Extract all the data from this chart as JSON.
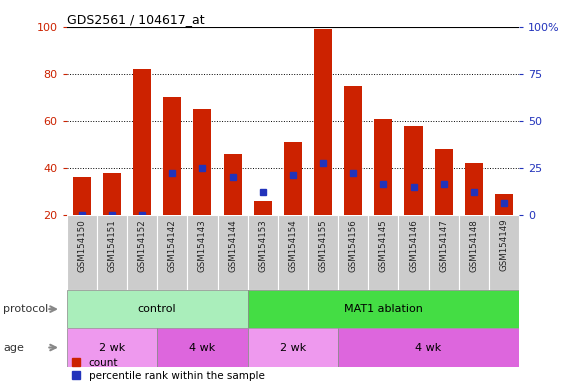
{
  "title": "GDS2561 / 104617_at",
  "samples": [
    "GSM154150",
    "GSM154151",
    "GSM154152",
    "GSM154142",
    "GSM154143",
    "GSM154144",
    "GSM154153",
    "GSM154154",
    "GSM154155",
    "GSM154156",
    "GSM154145",
    "GSM154146",
    "GSM154147",
    "GSM154148",
    "GSM154149"
  ],
  "count_values": [
    36,
    38,
    82,
    70,
    65,
    46,
    26,
    51,
    99,
    75,
    61,
    58,
    48,
    42,
    29
  ],
  "percentile_values": [
    20,
    20,
    20,
    38,
    40,
    36,
    30,
    37,
    42,
    38,
    33,
    32,
    33,
    30,
    25
  ],
  "bar_bottom": 20,
  "red_color": "#CC2200",
  "blue_color": "#2233BB",
  "protocol_groups": [
    {
      "label": "control",
      "start": 0,
      "end": 6,
      "color": "#AAEEBB"
    },
    {
      "label": "MAT1 ablation",
      "start": 6,
      "end": 15,
      "color": "#44DD44"
    }
  ],
  "age_groups": [
    {
      "label": "2 wk",
      "start": 0,
      "end": 3,
      "color": "#EE99EE"
    },
    {
      "label": "4 wk",
      "start": 3,
      "end": 6,
      "color": "#DD66DD"
    },
    {
      "label": "2 wk",
      "start": 6,
      "end": 9,
      "color": "#EE99EE"
    },
    {
      "label": "4 wk",
      "start": 9,
      "end": 15,
      "color": "#DD66DD"
    }
  ],
  "ylim": [
    20,
    100
  ],
  "yticks": [
    20,
    40,
    60,
    80,
    100
  ],
  "y2_ticks_left": [
    20,
    40,
    60,
    80,
    100
  ],
  "y2_labels": [
    "0",
    "25",
    "50",
    "75",
    "100%"
  ],
  "legend_count_label": "count",
  "legend_pct_label": "percentile rank within the sample",
  "title_color": "#000000",
  "xticklabel_bg": "#CCCCCC",
  "bar_width": 0.6
}
